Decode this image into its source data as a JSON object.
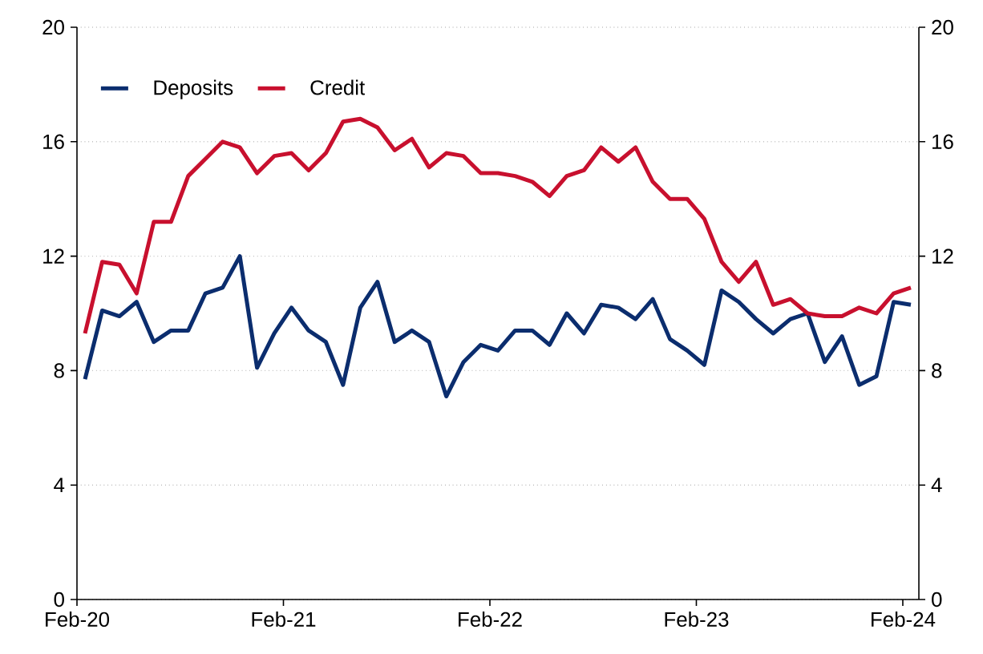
{
  "chart_data": {
    "type": "line",
    "x": [
      "2020-02-15",
      "2020-03-15",
      "2020-04-15",
      "2020-05-15",
      "2020-06-15",
      "2020-07-15",
      "2020-08-15",
      "2020-09-15",
      "2020-10-15",
      "2020-11-15",
      "2020-12-15",
      "2021-01-15",
      "2021-02-15",
      "2021-03-15",
      "2021-04-15",
      "2021-05-15",
      "2021-06-15",
      "2021-07-15",
      "2021-08-15",
      "2021-09-15",
      "2021-10-15",
      "2021-11-15",
      "2021-12-15",
      "2022-01-15",
      "2022-02-15",
      "2022-03-15",
      "2022-04-15",
      "2022-05-15",
      "2022-06-15",
      "2022-07-15",
      "2022-08-15",
      "2022-09-15",
      "2022-10-15",
      "2022-11-15",
      "2022-12-15",
      "2023-01-15",
      "2023-02-15",
      "2023-03-15",
      "2023-04-15",
      "2023-05-15",
      "2023-06-15",
      "2023-07-15",
      "2023-08-15",
      "2023-09-15",
      "2023-10-15",
      "2023-11-15",
      "2023-12-15",
      "2024-01-15",
      "2024-02-15"
    ],
    "series": [
      {
        "name": "Deposits",
        "color": "#0b2d6e",
        "values": [
          7.7,
          10.1,
          9.9,
          10.4,
          9.0,
          9.4,
          9.4,
          10.7,
          10.9,
          12.0,
          8.1,
          9.3,
          10.2,
          9.4,
          9.0,
          7.5,
          10.2,
          11.1,
          9.0,
          9.4,
          9.0,
          7.1,
          8.3,
          8.9,
          8.7,
          9.4,
          9.4,
          8.9,
          10.0,
          9.3,
          10.3,
          10.2,
          9.8,
          10.5,
          9.1,
          8.7,
          8.2,
          10.8,
          10.4,
          9.8,
          9.3,
          9.8,
          10.0,
          8.3,
          9.2,
          7.5,
          7.8,
          10.4,
          10.3
        ]
      },
      {
        "name": "Credit",
        "color": "#c8102e",
        "values": [
          9.3,
          11.8,
          11.7,
          10.7,
          13.2,
          13.2,
          14.8,
          15.4,
          16.0,
          15.8,
          14.9,
          15.5,
          15.6,
          15.0,
          15.6,
          16.7,
          16.8,
          16.5,
          15.7,
          16.1,
          15.1,
          15.6,
          15.5,
          14.9,
          14.9,
          14.8,
          14.6,
          14.1,
          14.8,
          15.0,
          15.8,
          15.3,
          15.8,
          14.6,
          14.0,
          14.0,
          13.3,
          11.8,
          11.1,
          11.8,
          10.3,
          10.5,
          10.0,
          9.9,
          9.9,
          10.2,
          10.0,
          10.7,
          10.9
        ]
      }
    ],
    "xlim": [
      "2020-02-01",
      "2024-02-29"
    ],
    "xticks": [
      {
        "value": "2020-02-01",
        "label": "Feb-20"
      },
      {
        "value": "2021-02-01",
        "label": "Feb-21"
      },
      {
        "value": "2022-02-01",
        "label": "Feb-22"
      },
      {
        "value": "2023-02-01",
        "label": "Feb-23"
      },
      {
        "value": "2024-02-01",
        "label": "Feb-24"
      }
    ],
    "ylim": [
      0,
      20
    ],
    "yticks": [
      0,
      4,
      8,
      12,
      16,
      20
    ],
    "y2lim": [
      0,
      20
    ],
    "y2ticks": [
      0,
      4,
      8,
      12,
      16,
      20
    ],
    "grid": "y",
    "legend": "top left"
  }
}
